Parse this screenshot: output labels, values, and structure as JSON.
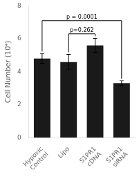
{
  "chart_data": {
    "type": "bar",
    "categories": [
      "Hypoxic\nControl",
      "Lipo",
      "S1PR1\ncDNA",
      "S1PR1\nsiRNA"
    ],
    "values": [
      4.8,
      4.6,
      5.6,
      3.3
    ],
    "errors": [
      0.3,
      0.45,
      0.42,
      0.15
    ],
    "color": "#1a1a1a",
    "y_label": "Cell Number (10⁴)",
    "ylim": [
      0,
      8
    ],
    "yticks": [
      0,
      2,
      4,
      6,
      8
    ],
    "grid": false,
    "annotations": [
      {
        "from": "Lipo",
        "to": "S1PR1\ncDNA",
        "y": 6.3,
        "text": "p=0.262"
      },
      {
        "from": "Hypoxic\nControl",
        "to": "S1PR1\nsiRNA",
        "y": 7.1,
        "text": "p = 0.0001"
      }
    ]
  }
}
